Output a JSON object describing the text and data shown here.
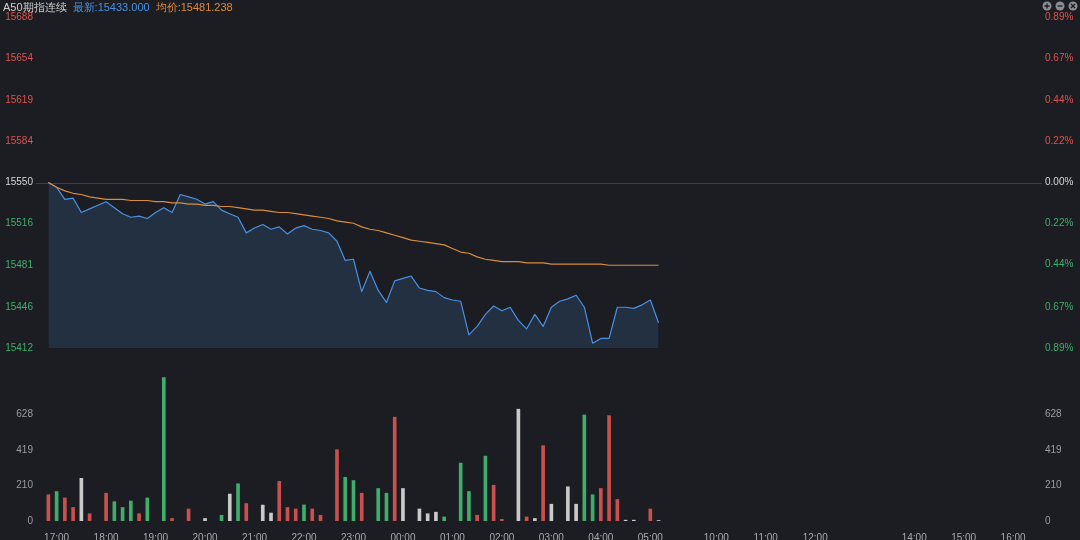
{
  "chart_data": [
    {
      "type": "area",
      "title": "A50期指连续",
      "categories": [
        null,
        null,
        null,
        null,
        null,
        null,
        null,
        null,
        null,
        null,
        null,
        null,
        null,
        null,
        null,
        null,
        null,
        null,
        null,
        null,
        null,
        null,
        null,
        null,
        null,
        null,
        null,
        null,
        null,
        null,
        null,
        null,
        null,
        null,
        null,
        null,
        null,
        null,
        null,
        null,
        null,
        null,
        null,
        null,
        null,
        null,
        null,
        null,
        null,
        null,
        null,
        null,
        null,
        null,
        null,
        null,
        null,
        null,
        null,
        null,
        null,
        null,
        null,
        null,
        null,
        null,
        null,
        null,
        null,
        null,
        null,
        null,
        null,
        null,
        null,
        null,
        null,
        null,
        null,
        null,
        null,
        null,
        null,
        null,
        null,
        null,
        null,
        null,
        null,
        null,
        null,
        null,
        null,
        null,
        null,
        null,
        null,
        null,
        null,
        null,
        null,
        null,
        null,
        null,
        null,
        null,
        null,
        null,
        null,
        null,
        null,
        null,
        null,
        null,
        null,
        null,
        null,
        null,
        null,
        null,
        null,
        null
      ],
      "series": [
        {
          "name": "最新:15433.000",
          "color": "#4a90e2",
          "values": [
            null,
            15550,
            15546,
            15536,
            15537,
            15525,
            15528,
            15531,
            15534,
            15529,
            15524,
            15521,
            15522,
            15520,
            15525,
            15529,
            15525,
            15540,
            15538,
            15536,
            15532,
            15534,
            15527,
            15524,
            15521,
            15508,
            15512,
            15515,
            15511,
            15513,
            15507,
            15512,
            15514,
            15511,
            15510,
            15508,
            15501,
            15485,
            15486,
            15459,
            15476,
            15460,
            15450,
            15468,
            15470,
            15472,
            15462,
            15460,
            15459,
            15454,
            15452,
            15451,
            15423,
            15430,
            15440,
            15447,
            15443,
            15446,
            15435,
            15428,
            15440,
            15430,
            15446,
            15451,
            15453,
            15456,
            15446,
            15416,
            15420,
            15420,
            15446,
            15446,
            15445,
            15448,
            15452,
            15433,
            null,
            null,
            null,
            null,
            null,
            null,
            null,
            null,
            null,
            null,
            null,
            null,
            null,
            null,
            null,
            null,
            null,
            null,
            null,
            null,
            null,
            null,
            null,
            null,
            null,
            null,
            null,
            null,
            null,
            null,
            null,
            null,
            null,
            null,
            null,
            null,
            null,
            null,
            null,
            null,
            null,
            null,
            null,
            null,
            null,
            null
          ]
        },
        {
          "name": "均价:15481.238",
          "type": "line",
          "color": "#d98c3f",
          "values": [
            null,
            15550,
            15546,
            15543,
            15541,
            15540,
            15538,
            15537,
            15536,
            15536,
            15536,
            15535,
            15535,
            15535,
            15534,
            15534,
            15533,
            15533,
            15532,
            15532,
            15531,
            15531,
            15530,
            15530,
            15529,
            15528,
            15527,
            15527,
            15526,
            15525,
            15525,
            15524,
            15523,
            15522,
            15521,
            15520,
            15518,
            15517,
            15516,
            15513,
            15511,
            15510,
            15508,
            15506,
            15504,
            15502,
            15501,
            15500,
            15499,
            15498,
            15495,
            15492,
            15491,
            15488,
            15486,
            15485,
            15484,
            15484,
            15484,
            15483,
            15483,
            15483,
            15482,
            15482,
            15482,
            15482,
            15482,
            15482,
            15482,
            15481,
            15481,
            15481,
            15481,
            15481,
            15481,
            15481,
            null,
            null,
            null,
            null,
            null,
            null,
            null,
            null,
            null,
            null,
            null,
            null,
            null,
            null,
            null,
            null,
            null,
            null,
            null,
            null,
            null,
            null,
            null,
            null,
            null,
            null,
            null,
            null,
            null,
            null,
            null,
            null,
            null,
            null,
            null,
            null,
            null,
            null,
            null,
            null,
            null,
            null,
            null,
            null,
            null,
            null
          ]
        }
      ],
      "ylim": [
        15412,
        15688
      ],
      "yticks": [
        15412,
        15446,
        15481,
        15516,
        15550,
        15584,
        15619,
        15654,
        15688
      ],
      "y2lim": [
        -0.89,
        0.89
      ],
      "y2ticks": [
        {
          "value": -0.89,
          "label": "0.89%"
        },
        {
          "value": -0.67,
          "label": "0.67%"
        },
        {
          "value": -0.44,
          "label": "0.44%"
        },
        {
          "value": -0.22,
          "label": "0.22%"
        },
        {
          "value": 0,
          "label": "0.00%"
        },
        {
          "value": 0.22,
          "label": "0.22%"
        },
        {
          "value": 0.44,
          "label": "0.44%"
        },
        {
          "value": 0.67,
          "label": "0.67%"
        },
        {
          "value": 0.89,
          "label": "0.89%"
        }
      ],
      "ref_lines": [
        {
          "axis": "y",
          "value": 15550,
          "color": "#3a3f48"
        }
      ],
      "tick_labels": "y",
      "legend": false,
      "marker": "none",
      "line_style": "solid",
      "grid": false
    },
    {
      "type": "bar",
      "categories": [
        null,
        null,
        "17:00",
        null,
        null,
        null,
        null,
        null,
        "18:00",
        null,
        null,
        null,
        null,
        null,
        "19:00",
        null,
        null,
        null,
        null,
        null,
        "20:00",
        null,
        null,
        null,
        null,
        null,
        "21:00",
        null,
        null,
        null,
        null,
        null,
        "22:00",
        null,
        null,
        null,
        null,
        null,
        "23:00",
        null,
        null,
        null,
        null,
        null,
        "00:00",
        null,
        null,
        null,
        null,
        null,
        "01:00",
        null,
        null,
        null,
        null,
        null,
        "02:00",
        null,
        null,
        null,
        null,
        null,
        "03:00",
        null,
        null,
        null,
        null,
        null,
        "04:00",
        null,
        null,
        null,
        null,
        null,
        "05:00",
        null,
        null,
        null,
        null,
        null,
        null,
        null,
        "10:00",
        null,
        null,
        null,
        null,
        null,
        "11:00",
        null,
        null,
        null,
        null,
        null,
        "12:00",
        null,
        null,
        null,
        null,
        null,
        null,
        null,
        null,
        null,
        null,
        null,
        "14:00",
        null,
        null,
        null,
        null,
        null,
        "15:00",
        null,
        null,
        null,
        null,
        null,
        "16:00",
        null,
        null,
        null
      ],
      "values": [
        null,
        155,
        174,
        136,
        80,
        252,
        43,
        null,
        164,
        114,
        80,
        118,
        43,
        136,
        null,
        847,
        15,
        null,
        71,
        null,
        15,
        null,
        34,
        159,
        220,
        103,
        null,
        94,
        47,
        234,
        80,
        71,
        95,
        71,
        34,
        null,
        421,
        258,
        239,
        164,
        null,
        192,
        164,
        613,
        192,
        null,
        71,
        43,
        52,
        24,
        null,
        342,
        174,
        34,
        383,
        211,
        10,
        null,
        660,
        24,
        15,
        445,
        99,
        null,
        202,
        99,
        626,
        155,
        192,
        622,
        127,
        5,
        5,
        null,
        71,
        3,
        null,
        null,
        null,
        null,
        null,
        null,
        null,
        null,
        null,
        null,
        null,
        null,
        null,
        null,
        null,
        null,
        null,
        null,
        null,
        null,
        null,
        null,
        null,
        null,
        null,
        null,
        null,
        null,
        null,
        null,
        null,
        null,
        null,
        null,
        null,
        null,
        null,
        null,
        null,
        null,
        null,
        null,
        null,
        null,
        null,
        null
      ],
      "colors": [
        null,
        "#c9504c",
        "#3fae6a",
        "#c9504c",
        "#c9504c",
        "#c9c9c9",
        "#c9504c",
        null,
        "#c9504c",
        "#3fae6a",
        "#3fae6a",
        "#3fae6a",
        "#c9504c",
        "#3fae6a",
        null,
        "#3fae6a",
        "#c9504c",
        null,
        "#c9504c",
        null,
        "#c9c9c9",
        null,
        "#3fae6a",
        "#c9c9c9",
        "#3fae6a",
        "#c9504c",
        null,
        "#c9c9c9",
        "#c9c9c9",
        "#c9504c",
        "#c9504c",
        "#c9504c",
        "#3fae6a",
        "#c9504c",
        "#c9504c",
        null,
        "#c9504c",
        "#3fae6a",
        "#3fae6a",
        "#c9504c",
        null,
        "#3fae6a",
        "#3fae6a",
        "#c9504c",
        "#c9c9c9",
        null,
        "#c9c9c9",
        "#c9c9c9",
        "#c9c9c9",
        "#3fae6a",
        null,
        "#3fae6a",
        "#3fae6a",
        "#c9504c",
        "#3fae6a",
        "#c9504c",
        "#c9504c",
        null,
        "#c9c9c9",
        "#c9504c",
        "#c9c9c9",
        "#c9504c",
        "#c9c9c9",
        null,
        "#c9c9c9",
        "#c9c9c9",
        "#3fae6a",
        "#3fae6a",
        "#c9504c",
        "#c9504c",
        "#c9504c",
        "#c9c9c9",
        "#c9c9c9",
        null,
        "#c9504c",
        "#c9c9c9",
        null,
        null,
        null,
        null,
        null,
        null,
        null,
        null,
        null,
        null,
        null,
        null,
        null,
        null,
        null,
        null,
        null,
        null,
        null,
        null,
        null,
        null,
        null,
        null,
        null,
        null,
        null,
        null,
        null,
        null,
        null,
        null,
        null,
        null,
        null,
        null,
        null,
        null,
        null,
        null,
        null,
        null,
        null,
        null,
        null,
        null
      ],
      "ylim": [
        0,
        850
      ],
      "yticks": [
        0,
        210,
        419,
        628
      ],
      "y2lim": [
        0,
        850
      ],
      "y2ticks": [
        0,
        210,
        419,
        628
      ],
      "legend": false,
      "grid": false
    }
  ]
}
